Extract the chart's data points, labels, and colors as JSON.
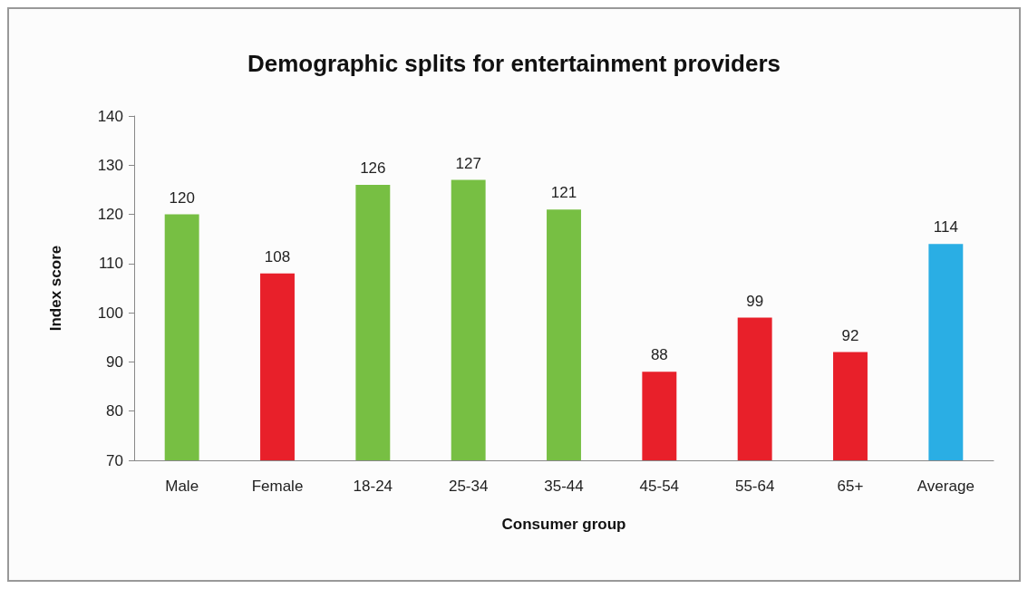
{
  "chart_data": {
    "type": "bar",
    "title": "Demographic splits for entertainment providers",
    "xlabel": "Consumer group",
    "ylabel": "Index score",
    "categories": [
      "Male",
      "Female",
      "18-24",
      "25-34",
      "35-44",
      "45-54",
      "55-64",
      "65+",
      "Average"
    ],
    "values": [
      120,
      108,
      126,
      127,
      121,
      88,
      99,
      92,
      114
    ],
    "colors": [
      "#77bf43",
      "#e8202a",
      "#77bf43",
      "#77bf43",
      "#77bf43",
      "#e8202a",
      "#e8202a",
      "#e8202a",
      "#2aaee4"
    ],
    "ylim": [
      70,
      140
    ],
    "yticks": [
      70,
      80,
      90,
      100,
      110,
      120,
      130,
      140
    ],
    "grid": false,
    "data_labels": true
  }
}
